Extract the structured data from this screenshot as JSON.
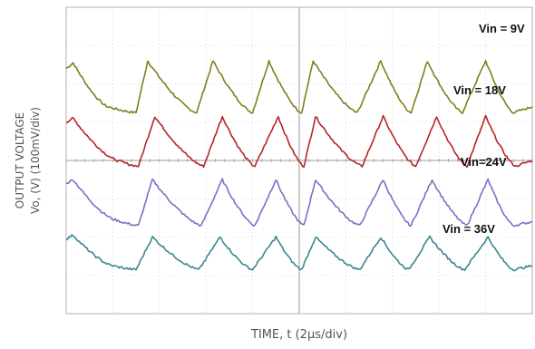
{
  "chart_data": {
    "type": "line",
    "title": "",
    "xlabel": "TIME, t (2µs/div)",
    "ylabel_line1": "OUTPUT VOLTAGE",
    "ylabel_line2": "Vo, (V) (100mV/div)",
    "grid": true,
    "x_divisions": 10,
    "y_divisions": 8,
    "x_unit": "div",
    "y_unit": "div",
    "series": [
      {
        "name": "Vin = 9V",
        "color": "#7f7f1e",
        "baseline_div": 6.0,
        "x": [
          0,
          0.15,
          0.9,
          1.5,
          1.75,
          2.8,
          3.15,
          4.0,
          4.35,
          5.05,
          5.3,
          6.25,
          6.75,
          7.4,
          7.75,
          8.5,
          9.0,
          9.6,
          10.0
        ],
        "y": [
          0.4,
          0.55,
          -0.6,
          -0.75,
          0.6,
          -0.75,
          0.6,
          -0.75,
          0.6,
          -0.75,
          0.6,
          -0.75,
          0.6,
          -0.75,
          0.6,
          -0.75,
          0.6,
          -0.75,
          -0.6
        ]
      },
      {
        "name": "Vin = 18V",
        "color": "#b52525",
        "baseline_div": 4.6,
        "x": [
          0,
          0.15,
          1.1,
          1.55,
          1.9,
          2.95,
          3.35,
          4.05,
          4.55,
          5.1,
          5.35,
          6.35,
          6.8,
          7.5,
          7.95,
          8.6,
          9.0,
          9.65,
          10.0
        ],
        "y": [
          0.4,
          0.5,
          -0.6,
          -0.75,
          0.55,
          -0.75,
          0.55,
          -0.75,
          0.55,
          -0.75,
          0.55,
          -0.75,
          0.55,
          -0.75,
          0.55,
          -0.75,
          0.55,
          -0.75,
          -0.6
        ]
      },
      {
        "name": "Vin=24V",
        "color": "#7a70c8",
        "baseline_div": 3.0,
        "x": [
          0,
          0.15,
          1.05,
          1.55,
          1.85,
          2.9,
          3.35,
          4.05,
          4.5,
          5.1,
          5.35,
          6.3,
          6.8,
          7.4,
          7.85,
          8.6,
          9.05,
          9.6,
          10.0
        ],
        "y": [
          0.4,
          0.5,
          -0.55,
          -0.7,
          0.5,
          -0.7,
          0.5,
          -0.7,
          0.5,
          -0.7,
          0.5,
          -0.7,
          0.5,
          -0.7,
          0.5,
          -0.7,
          0.5,
          -0.7,
          -0.6
        ]
      },
      {
        "name": "Vin = 36V",
        "color": "#3a8690",
        "baseline_div": 1.65,
        "x": [
          0,
          0.15,
          1.0,
          1.5,
          1.85,
          2.85,
          3.3,
          4.0,
          4.5,
          5.05,
          5.35,
          6.3,
          6.75,
          7.35,
          7.8,
          8.55,
          9.05,
          9.6,
          10.0
        ],
        "y": [
          0.3,
          0.4,
          -0.4,
          -0.5,
          0.35,
          -0.5,
          0.35,
          -0.5,
          0.35,
          -0.5,
          0.35,
          -0.5,
          0.35,
          -0.5,
          0.35,
          -0.5,
          0.35,
          -0.5,
          -0.4
        ]
      }
    ],
    "annotations": [
      "Vin = 9V",
      "Vin = 18V",
      "Vin=24V",
      "Vin = 36V"
    ]
  }
}
